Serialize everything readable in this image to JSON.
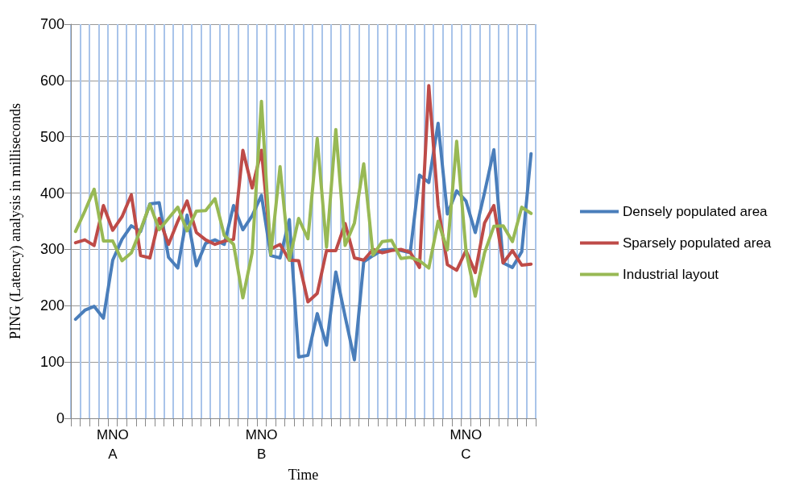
{
  "chart_data": {
    "type": "line",
    "ylabel": "PING (Latency) analysis in milliseconds",
    "xlabel": "Time",
    "categories": [
      null,
      null,
      null,
      null,
      "MNO\nA",
      null,
      null,
      null,
      null,
      null,
      null,
      null,
      null,
      null,
      null,
      null,
      null,
      null,
      null,
      null,
      "MNO\nB",
      null,
      null,
      null,
      null,
      null,
      null,
      null,
      null,
      null,
      null,
      null,
      null,
      null,
      null,
      null,
      null,
      null,
      null,
      null,
      null,
      null,
      "MNO\nC",
      null,
      null,
      null,
      null,
      null,
      null,
      null
    ],
    "series": [
      {
        "name": "Densely populated area",
        "color": "#4a7ebb",
        "values": [
          176,
          192,
          199,
          178,
          281,
          318,
          342,
          332,
          381,
          383,
          286,
          267,
          361,
          271,
          311,
          317,
          309,
          378,
          335,
          360,
          396,
          289,
          285,
          353,
          109,
          112,
          186,
          130,
          260,
          181,
          104,
          278,
          289,
          299,
          300,
          298,
          294,
          432,
          419,
          524,
          363,
          404,
          386,
          330,
          401,
          477,
          276,
          268,
          296,
          470
        ]
      },
      {
        "name": "Sparsely populated area",
        "color": "#be4b48",
        "values": [
          312,
          317,
          307,
          378,
          334,
          358,
          397,
          289,
          285,
          355,
          309,
          350,
          386,
          330,
          317,
          309,
          315,
          318,
          476,
          409,
          476,
          301,
          309,
          281,
          280,
          207,
          222,
          298,
          298,
          346,
          285,
          281,
          300,
          294,
          298,
          300,
          295,
          268,
          591,
          378,
          273,
          263,
          298,
          259,
          347,
          378,
          276,
          298,
          272,
          274
        ]
      },
      {
        "name": "Industrial layout",
        "color": "#98b954",
        "values": [
          332,
          368,
          407,
          315,
          315,
          280,
          294,
          335,
          380,
          335,
          355,
          375,
          333,
          368,
          369,
          390,
          325,
          309,
          214,
          294,
          563,
          291,
          447,
          281,
          355,
          319,
          497,
          304,
          513,
          307,
          347,
          452,
          290,
          314,
          316,
          284,
          286,
          280,
          267,
          350,
          299,
          492,
          298,
          217,
          294,
          341,
          342,
          314,
          375,
          364
        ]
      }
    ],
    "ylim": [
      0,
      700
    ],
    "yticks": [
      0,
      100,
      200,
      300,
      400,
      500,
      600,
      700
    ],
    "grid": true,
    "legend": "right",
    "marker": "none",
    "line_style": "solid"
  }
}
